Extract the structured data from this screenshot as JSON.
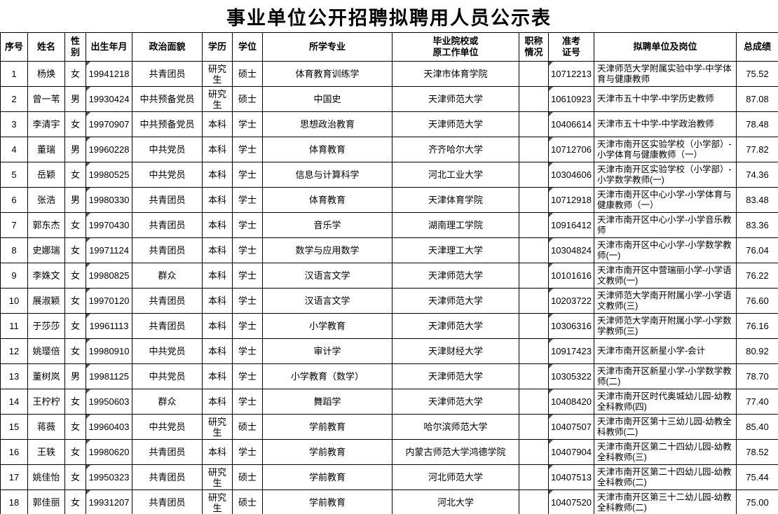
{
  "title": "事业单位公开招聘拟聘用人员公示表",
  "colors": {
    "flag_triangle": "#2e6b2e",
    "border": "#000000"
  },
  "table": {
    "page_break_after_row": 16,
    "headers": [
      "序号",
      "姓名",
      "性\n别",
      "出生年月",
      "政治面貌",
      "学历",
      "学位",
      "所学专业",
      "毕业院校或\n原工作单位",
      "职称\n情况",
      "准考\n证号",
      "拟聘单位及岗位",
      "总成绩"
    ],
    "rows": [
      {
        "no": "1",
        "name": "杨焕",
        "gender": "女",
        "birth": "19941218",
        "political": "共青团员",
        "education": "研究生",
        "degree": "硕士",
        "major": "体育教育训练学",
        "school": "天津市体育学院",
        "title_status": "",
        "exam_no": "10712213",
        "position": "天津师范大学附属实验中学-中学体育与健康教师",
        "score": "75.52"
      },
      {
        "no": "2",
        "name": "曾一苇",
        "gender": "男",
        "birth": "19930424",
        "political": "中共预备党员",
        "education": "研究生",
        "degree": "硕士",
        "major": "中国史",
        "school": "天津师范大学",
        "title_status": "",
        "exam_no": "10610923",
        "position": "天津市五十中学-中学历史教师",
        "score": "87.08"
      },
      {
        "no": "3",
        "name": "李清宇",
        "gender": "女",
        "birth": "19970907",
        "political": "中共预备党员",
        "education": "本科",
        "degree": "学士",
        "major": "思想政治教育",
        "school": "天津师范大学",
        "title_status": "",
        "exam_no": "10406614",
        "position": "天津市五十中学-中学政治教师",
        "score": "78.48"
      },
      {
        "no": "4",
        "name": "董瑞",
        "gender": "男",
        "birth": "19960228",
        "political": "中共党员",
        "education": "本科",
        "degree": "学士",
        "major": "体育教育",
        "school": "齐齐哈尔大学",
        "title_status": "",
        "exam_no": "10712706",
        "position": "天津市南开区实验学校（小学部）-小学体育与健康教师（一）",
        "score": "77.82"
      },
      {
        "no": "5",
        "name": "岳颖",
        "gender": "女",
        "birth": "19980525",
        "political": "中共党员",
        "education": "本科",
        "degree": "学士",
        "major": "信息与计算科学",
        "school": "河北工业大学",
        "title_status": "",
        "exam_no": "10304606",
        "position": "天津市南开区实验学校（小学部）-小学数学教师(一)",
        "score": "74.36"
      },
      {
        "no": "6",
        "name": "张浩",
        "gender": "男",
        "birth": "19980330",
        "political": "共青团员",
        "education": "本科",
        "degree": "学士",
        "major": "体育教育",
        "school": "天津体育学院",
        "title_status": "",
        "exam_no": "10712918",
        "position": "天津市南开区中心小学-小学体育与健康教师（一）",
        "score": "83.48"
      },
      {
        "no": "7",
        "name": "郭东杰",
        "gender": "女",
        "birth": "19970430",
        "political": "共青团员",
        "education": "本科",
        "degree": "学士",
        "major": "音乐学",
        "school": "湖南理工学院",
        "title_status": "",
        "exam_no": "10916412",
        "position": "天津市南开区中心小学-小学音乐教师",
        "score": "83.36"
      },
      {
        "no": "8",
        "name": "史娜瑞",
        "gender": "女",
        "birth": "19971124",
        "political": "共青团员",
        "education": "本科",
        "degree": "学士",
        "major": "数学与应用数学",
        "school": "天津理工大学",
        "title_status": "",
        "exam_no": "10304824",
        "position": "天津市南开区中心小学-小学数学教师(一)",
        "score": "76.04"
      },
      {
        "no": "9",
        "name": "李姝文",
        "gender": "女",
        "birth": "19980825",
        "political": "群众",
        "education": "本科",
        "degree": "学士",
        "major": "汉语言文学",
        "school": "天津师范大学",
        "title_status": "",
        "exam_no": "10101616",
        "position": "天津市南开区中营瑞丽小学-小学语文教师(一)",
        "score": "76.22"
      },
      {
        "no": "10",
        "name": "展淑颖",
        "gender": "女",
        "birth": "19970120",
        "political": "共青团员",
        "education": "本科",
        "degree": "学士",
        "major": "汉语言文学",
        "school": "天津师范大学",
        "title_status": "",
        "exam_no": "10203722",
        "position": "天津师范大学南开附属小学-小学语文教师(三)",
        "score": "76.60"
      },
      {
        "no": "11",
        "name": "于莎莎",
        "gender": "女",
        "birth": "19961113",
        "political": "共青团员",
        "education": "本科",
        "degree": "学士",
        "major": "小学教育",
        "school": "天津师范大学",
        "title_status": "",
        "exam_no": "10306316",
        "position": "天津师范大学南开附属小学-小学数学教师(三)",
        "score": "76.16"
      },
      {
        "no": "12",
        "name": "姚璎倍",
        "gender": "女",
        "birth": "19980910",
        "political": "中共党员",
        "education": "本科",
        "degree": "学士",
        "major": "审计学",
        "school": "天津财经大学",
        "title_status": "",
        "exam_no": "10917423",
        "position": "天津市南开区新星小学-会计",
        "score": "80.92"
      },
      {
        "no": "13",
        "name": "董树岚",
        "gender": "男",
        "birth": "19981125",
        "political": "中共党员",
        "education": "本科",
        "degree": "学士",
        "major": "小学教育（数学）",
        "school": "天津师范大学",
        "title_status": "",
        "exam_no": "10305322",
        "position": "天津市南开区新星小学-小学数学教师(二)",
        "score": "78.70"
      },
      {
        "no": "14",
        "name": "王柠柠",
        "gender": "女",
        "birth": "19950603",
        "political": "群众",
        "education": "本科",
        "degree": "学士",
        "major": "舞蹈学",
        "school": "天津师范大学",
        "title_status": "",
        "exam_no": "10408420",
        "position": "天津市南开区时代奥城幼儿园-幼教全科教师(四)",
        "score": "77.40"
      },
      {
        "no": "15",
        "name": "蒋薇",
        "gender": "女",
        "birth": "19960403",
        "political": "中共党员",
        "education": "研究生",
        "degree": "硕士",
        "major": "学前教育",
        "school": "哈尔滨师范大学",
        "title_status": "",
        "exam_no": "10407507",
        "position": "天津市南开区第十三幼儿园-幼教全科教师(二)",
        "score": "85.40"
      },
      {
        "no": "16",
        "name": "王轶",
        "gender": "女",
        "birth": "19980620",
        "political": "共青团员",
        "education": "本科",
        "degree": "学士",
        "major": "学前教育",
        "school": "内蒙古师范大学鸿德学院",
        "title_status": "",
        "exam_no": "10407904",
        "position": "天津市南开区第二十四幼儿园-幼教全科教师(三)",
        "score": "78.52"
      },
      {
        "no": "17",
        "name": "姚佳怡",
        "gender": "女",
        "birth": "19950323",
        "political": "共青团员",
        "education": "研究生",
        "degree": "硕士",
        "major": "学前教育",
        "school": "河北师范大学",
        "title_status": "",
        "exam_no": "10407513",
        "position": "天津市南开区第二十四幼儿园-幼教全科教师(二)",
        "score": "75.44"
      },
      {
        "no": "18",
        "name": "郭佳丽",
        "gender": "女",
        "birth": "19931207",
        "political": "共青团员",
        "education": "研究生",
        "degree": "硕士",
        "major": "学前教育",
        "school": "河北大学",
        "title_status": "",
        "exam_no": "10407520",
        "position": "天津市南开区第三十二幼儿园-幼教全科教师(二)",
        "score": "75.00"
      }
    ]
  }
}
